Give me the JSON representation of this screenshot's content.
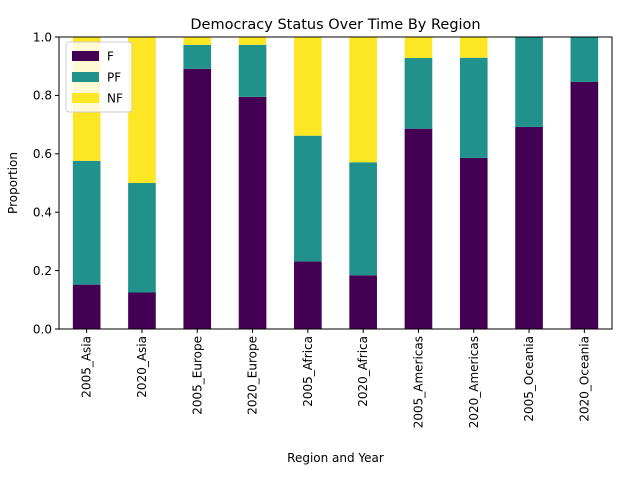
{
  "chart_data": {
    "type": "bar",
    "stacked": true,
    "title": "Democracy Status Over Time By Region",
    "xlabel": "Region and Year",
    "ylabel": "Proportion",
    "ylim": [
      0,
      1.0
    ],
    "yticks": [
      "0.0",
      "0.2",
      "0.4",
      "0.6",
      "0.8",
      "1.0"
    ],
    "categories": [
      "2005_Asia",
      "2020_Asia",
      "2005_Europe",
      "2020_Europe",
      "2005_Africa",
      "2020_Africa",
      "2005_Americas",
      "2020_Americas",
      "2005_Oceania",
      "2020_Oceania"
    ],
    "series": [
      {
        "name": "F",
        "color": "#440154",
        "values": [
          0.152,
          0.125,
          0.891,
          0.795,
          0.231,
          0.184,
          0.686,
          0.586,
          0.692,
          0.846
        ]
      },
      {
        "name": "PF",
        "color": "#21918c",
        "values": [
          0.424,
          0.375,
          0.082,
          0.178,
          0.431,
          0.387,
          0.242,
          0.343,
          0.308,
          0.154
        ]
      },
      {
        "name": "NF",
        "color": "#fde725",
        "values": [
          0.424,
          0.5,
          0.027,
          0.027,
          0.338,
          0.429,
          0.072,
          0.071,
          0.0,
          0.0
        ]
      }
    ],
    "legend_position": "top-left",
    "grid": false
  }
}
